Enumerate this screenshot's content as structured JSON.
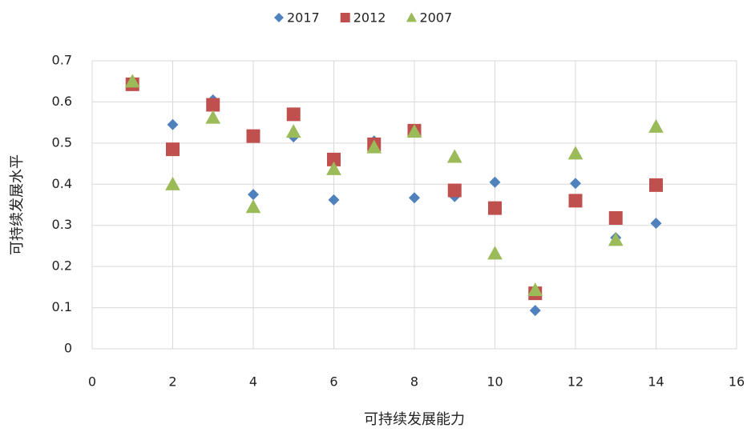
{
  "chart_data": {
    "type": "scatter",
    "x_label": "可持续发展能力",
    "y_label": "可持续发展水平",
    "x": [
      1,
      2,
      3,
      4,
      5,
      6,
      7,
      8,
      9,
      10,
      11,
      12,
      13,
      14
    ],
    "series": [
      {
        "name": "2017",
        "color": "#4f81bd",
        "marker": "diamond",
        "values": [
          0.65,
          0.545,
          0.605,
          0.375,
          0.515,
          0.362,
          0.505,
          0.367,
          0.37,
          0.405,
          0.093,
          0.402,
          0.27,
          0.305
        ]
      },
      {
        "name": "2012",
        "color": "#c0504d",
        "marker": "square",
        "values": [
          0.643,
          0.485,
          0.593,
          0.517,
          0.57,
          0.46,
          0.497,
          0.53,
          0.385,
          0.342,
          0.135,
          0.36,
          0.318,
          0.398
        ]
      },
      {
        "name": "2007",
        "color": "#9bbb59",
        "marker": "triangle",
        "values": [
          0.65,
          0.4,
          0.562,
          0.345,
          0.528,
          0.437,
          0.49,
          0.528,
          0.467,
          0.232,
          0.143,
          0.475,
          0.265,
          0.54
        ]
      }
    ],
    "xlim": [
      0,
      16
    ],
    "xticks": [
      0,
      2,
      4,
      6,
      8,
      10,
      12,
      14,
      16
    ],
    "ylim": [
      0,
      0.7
    ],
    "yticks": [
      0,
      0.1,
      0.2,
      0.3,
      0.4,
      0.5,
      0.6,
      0.7
    ],
    "grid": true,
    "legend": "top"
  }
}
